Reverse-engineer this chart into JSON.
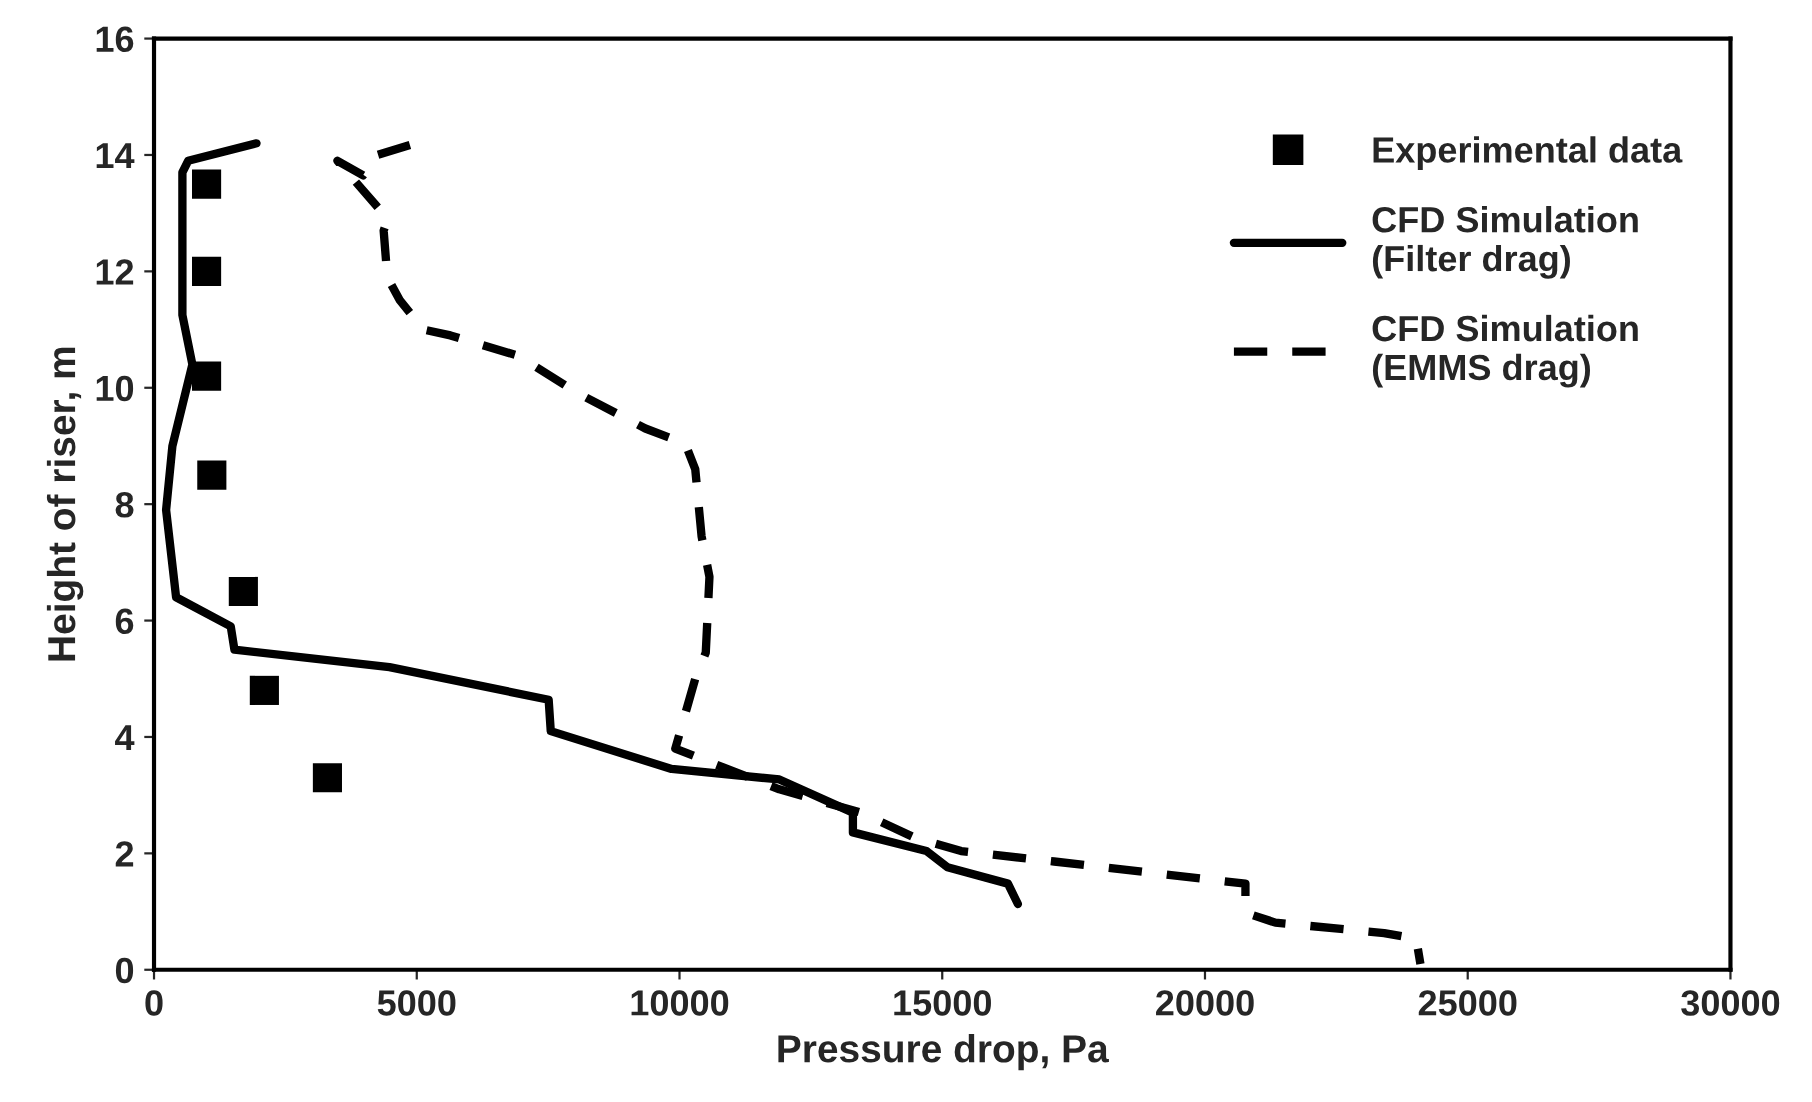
{
  "chart_data": {
    "type": "line",
    "xlabel": "Pressure drop, Pa",
    "ylabel": "Height of riser, m",
    "xlim": [
      0,
      30000
    ],
    "xticks": [
      0,
      5000,
      10000,
      15000,
      20000,
      25000,
      30000
    ],
    "ylim": [
      0,
      16
    ],
    "yticks": [
      0,
      2,
      4,
      6,
      8,
      10,
      12,
      14,
      16
    ],
    "grid": false,
    "legend": "top right",
    "series": [
      {
        "name": "Experimental data",
        "type": "scatter",
        "marker": "square",
        "color": "#000000",
        "x": [
          1000,
          1000,
          1000,
          1100,
          1700,
          2100,
          3300
        ],
        "values": [
          13.5,
          12,
          10.2,
          8.5,
          6.5,
          4.8,
          3.3
        ]
      },
      {
        "name": "CFD Simulation\n(Filter drag)",
        "line_style": "solid",
        "color": "#000000",
        "x": [
          1950,
          650,
          540,
          540,
          730,
          350,
          230,
          420,
          1460,
          1530,
          4480,
          7510,
          7550,
          9850,
          11900,
          13300,
          13300,
          14700,
          15100,
          16250,
          16440
        ],
        "values": [
          14.2,
          13.9,
          13.7,
          11.25,
          10.4,
          9.0,
          7.9,
          6.4,
          5.9,
          5.5,
          5.2,
          4.64,
          4.1,
          3.45,
          3.27,
          2.7,
          2.36,
          2.04,
          1.76,
          1.48,
          1.13
        ]
      },
      {
        "name": "CFD Simulation\n(EMMS drag)",
        "line_style": "dashed",
        "color": "#000000",
        "x": [
          4870,
          4250,
          3980,
          3490,
          4450,
          4370,
          4440,
          4680,
          5130,
          5640,
          6930,
          8080,
          9350,
          10110,
          10300,
          10420,
          10570,
          10500,
          10300,
          9920,
          11900,
          13450,
          14450,
          15360,
          17130,
          20080,
          20770,
          20770,
          21340,
          23410,
          24020,
          24100
        ],
        "values": [
          14.17,
          14.0,
          13.65,
          13.9,
          12.9,
          12.7,
          11.9,
          11.5,
          11.0,
          10.9,
          10.55,
          9.9,
          9.3,
          9.04,
          8.6,
          7.45,
          6.75,
          5.45,
          5.0,
          3.8,
          3.1,
          2.7,
          2.28,
          2.04,
          1.86,
          1.55,
          1.48,
          0.98,
          0.81,
          0.63,
          0.53,
          0.1
        ]
      }
    ]
  }
}
